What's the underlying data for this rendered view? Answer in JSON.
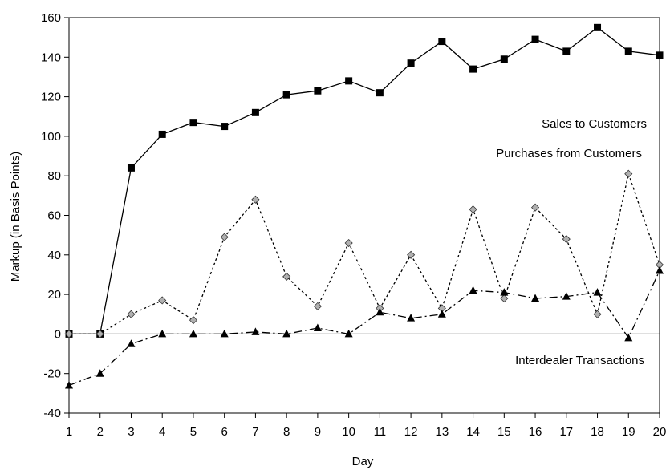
{
  "chart_data": {
    "type": "line",
    "title": "",
    "xlabel": "Day",
    "ylabel": "Markup (in Basis Points)",
    "x": [
      1,
      2,
      3,
      4,
      5,
      6,
      7,
      8,
      9,
      10,
      11,
      12,
      13,
      14,
      15,
      16,
      17,
      18,
      19,
      20
    ],
    "xlim": [
      1,
      20
    ],
    "ylim": [
      -40,
      160
    ],
    "yticks": [
      -40,
      -20,
      0,
      20,
      40,
      60,
      80,
      100,
      120,
      140,
      160
    ],
    "xticks": [
      1,
      2,
      3,
      4,
      5,
      6,
      7,
      8,
      9,
      10,
      11,
      12,
      13,
      14,
      15,
      16,
      17,
      18,
      19,
      20
    ],
    "grid": false,
    "legend": "none",
    "series": [
      {
        "name": "Sales to Customers",
        "marker": "square",
        "line": "solid",
        "color": "#000000",
        "values": [
          0,
          0,
          84,
          101,
          107,
          105,
          112,
          121,
          123,
          128,
          122,
          137,
          148,
          134,
          139,
          149,
          143,
          155,
          143,
          141
        ]
      },
      {
        "name": "Purchases from Customers",
        "marker": "diamond",
        "line": "dotted",
        "color": "#000000",
        "values": [
          0,
          0,
          10,
          17,
          7,
          49,
          68,
          29,
          14,
          46,
          13,
          40,
          13,
          63,
          18,
          64,
          48,
          10,
          81,
          35
        ]
      },
      {
        "name": "Interdealer Transactions",
        "marker": "triangle",
        "line": "dashdot",
        "color": "#000000",
        "values": [
          -26,
          -20,
          -5,
          0,
          0,
          0,
          1,
          0,
          3,
          0,
          11,
          8,
          10,
          22,
          21,
          18,
          19,
          21,
          -2,
          32
        ]
      }
    ],
    "annotations": [
      "Sales to Customers",
      "Purchases from Customers",
      "Interdealer Transactions"
    ]
  }
}
